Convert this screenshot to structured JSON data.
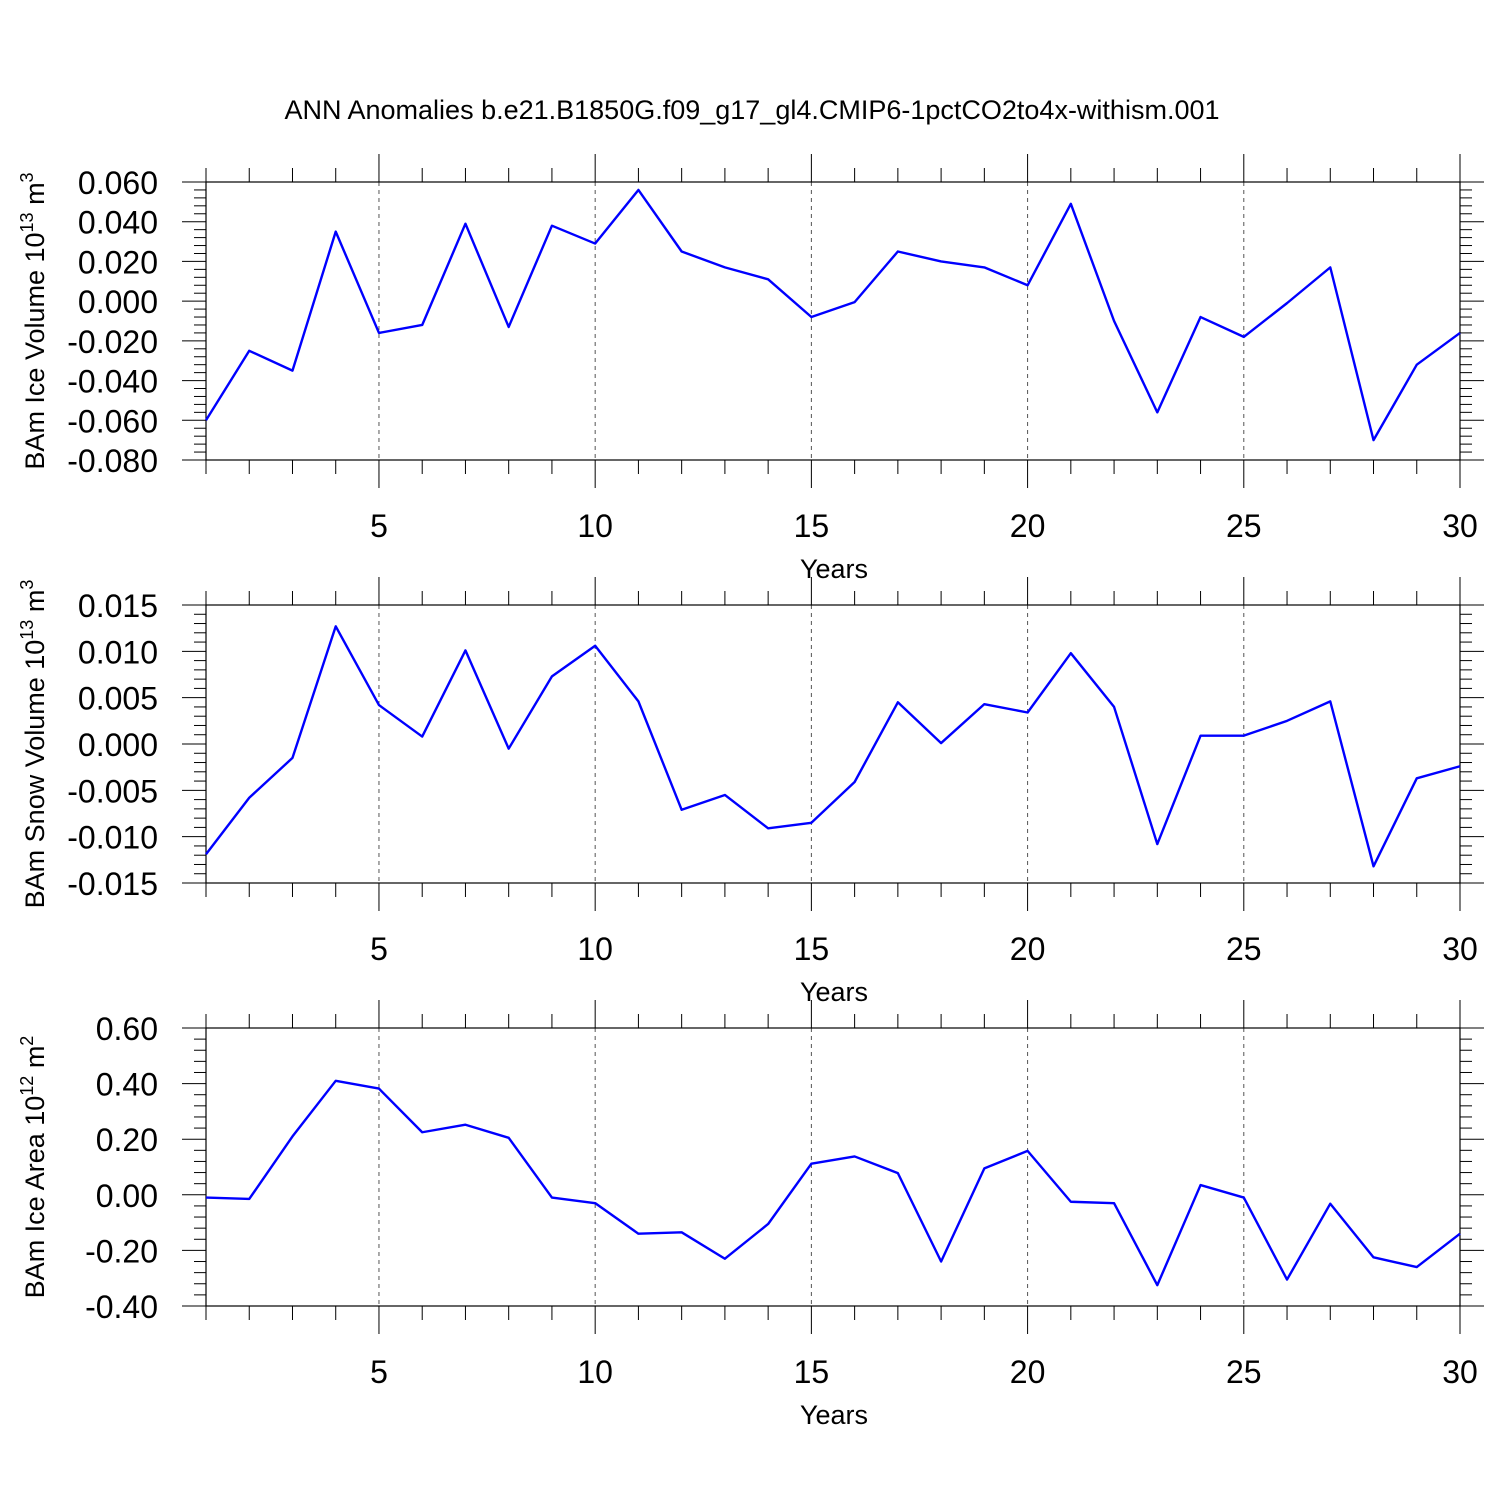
{
  "figure_title": "ANN Anomalies b.e21.B1850G.f09_g17_gl4.CMIP6-1pctCO2to4x-withism.001",
  "colors": {
    "series": "#0000ff",
    "reference_lines": "#555555"
  },
  "chart_data": [
    {
      "type": "line",
      "xlabel": "Years",
      "ylabel": {
        "prefix": "BAm Ice Volume 10",
        "exponent": "13",
        "unit_base": " m",
        "unit_exponent": "3"
      },
      "xlim": [
        1,
        30
      ],
      "ylim": [
        -0.08,
        0.06
      ],
      "x_ticks": [
        5,
        10,
        15,
        20,
        25,
        30
      ],
      "y_ticks": [
        0.06,
        0.04,
        0.02,
        0.0,
        -0.02,
        -0.04,
        -0.06,
        -0.08
      ],
      "y_tick_labels": [
        "0.060",
        "0.040",
        "0.020",
        "0.000",
        "-0.020",
        "-0.040",
        "-0.060",
        "-0.080"
      ],
      "reference_lines_x": [
        5,
        10,
        15,
        20,
        25
      ],
      "x": [
        1,
        2,
        3,
        4,
        5,
        6,
        7,
        8,
        9,
        10,
        11,
        12,
        13,
        14,
        15,
        16,
        17,
        18,
        19,
        20,
        21,
        22,
        23,
        24,
        25,
        26,
        27,
        28,
        29,
        30
      ],
      "series": [
        {
          "values": [
            -0.06,
            -0.025,
            -0.035,
            0.035,
            -0.016,
            -0.012,
            0.039,
            -0.013,
            0.038,
            0.029,
            0.056,
            0.025,
            0.017,
            0.011,
            -0.008,
            -0.0005,
            0.025,
            0.02,
            0.017,
            0.008,
            0.049,
            -0.01,
            -0.056,
            -0.008,
            -0.018,
            -0.001,
            0.017,
            -0.07,
            -0.032,
            -0.016
          ]
        }
      ]
    },
    {
      "type": "line",
      "xlabel": "Years",
      "ylabel": {
        "prefix": "BAm Snow Volume 10",
        "exponent": "13",
        "unit_base": " m",
        "unit_exponent": "3"
      },
      "xlim": [
        1,
        30
      ],
      "ylim": [
        -0.015,
        0.015
      ],
      "x_ticks": [
        5,
        10,
        15,
        20,
        25,
        30
      ],
      "y_ticks": [
        0.015,
        0.01,
        0.005,
        0.0,
        -0.005,
        -0.01,
        -0.015
      ],
      "y_tick_labels": [
        "0.015",
        "0.010",
        "0.005",
        "0.000",
        "-0.005",
        "-0.010",
        "-0.015"
      ],
      "reference_lines_x": [
        5,
        10,
        15,
        20,
        25
      ],
      "x": [
        1,
        2,
        3,
        4,
        5,
        6,
        7,
        8,
        9,
        10,
        11,
        12,
        13,
        14,
        15,
        16,
        17,
        18,
        19,
        20,
        21,
        22,
        23,
        24,
        25,
        26,
        27,
        28,
        29,
        30
      ],
      "series": [
        {
          "values": [
            -0.0119,
            -0.0058,
            -0.0015,
            0.0127,
            0.0042,
            0.0008,
            0.0101,
            -0.0005,
            0.0073,
            0.0106,
            0.0046,
            -0.0071,
            -0.0055,
            -0.0091,
            -0.0085,
            -0.0041,
            0.0045,
            0.0001,
            0.0043,
            0.0034,
            0.0098,
            0.004,
            -0.0108,
            0.0009,
            0.0009,
            0.0025,
            0.0046,
            -0.0132,
            -0.0037,
            -0.0024
          ]
        }
      ]
    },
    {
      "type": "line",
      "xlabel": "Years",
      "ylabel": {
        "prefix": "BAm Ice Area 10",
        "exponent": "12",
        "unit_base": " m",
        "unit_exponent": "2"
      },
      "xlim": [
        1,
        30
      ],
      "ylim": [
        -0.4,
        0.6
      ],
      "x_ticks": [
        5,
        10,
        15,
        20,
        25,
        30
      ],
      "y_ticks": [
        0.6,
        0.4,
        0.2,
        0.0,
        -0.2,
        -0.4
      ],
      "y_tick_labels": [
        "0.60",
        "0.40",
        "0.20",
        "0.00",
        "-0.20",
        "-0.40"
      ],
      "reference_lines_x": [
        5,
        10,
        15,
        20,
        25
      ],
      "x": [
        1,
        2,
        3,
        4,
        5,
        6,
        7,
        8,
        9,
        10,
        11,
        12,
        13,
        14,
        15,
        16,
        17,
        18,
        19,
        20,
        21,
        22,
        23,
        24,
        25,
        26,
        27,
        28,
        29,
        30
      ],
      "series": [
        {
          "values": [
            -0.01,
            -0.015,
            0.21,
            0.41,
            0.382,
            0.225,
            0.252,
            0.205,
            -0.01,
            -0.03,
            -0.14,
            -0.135,
            -0.23,
            -0.105,
            0.112,
            0.138,
            0.078,
            -0.24,
            0.095,
            0.158,
            -0.025,
            -0.03,
            -0.325,
            0.035,
            -0.01,
            -0.305,
            -0.032,
            -0.225,
            -0.26,
            -0.14
          ]
        }
      ]
    }
  ]
}
